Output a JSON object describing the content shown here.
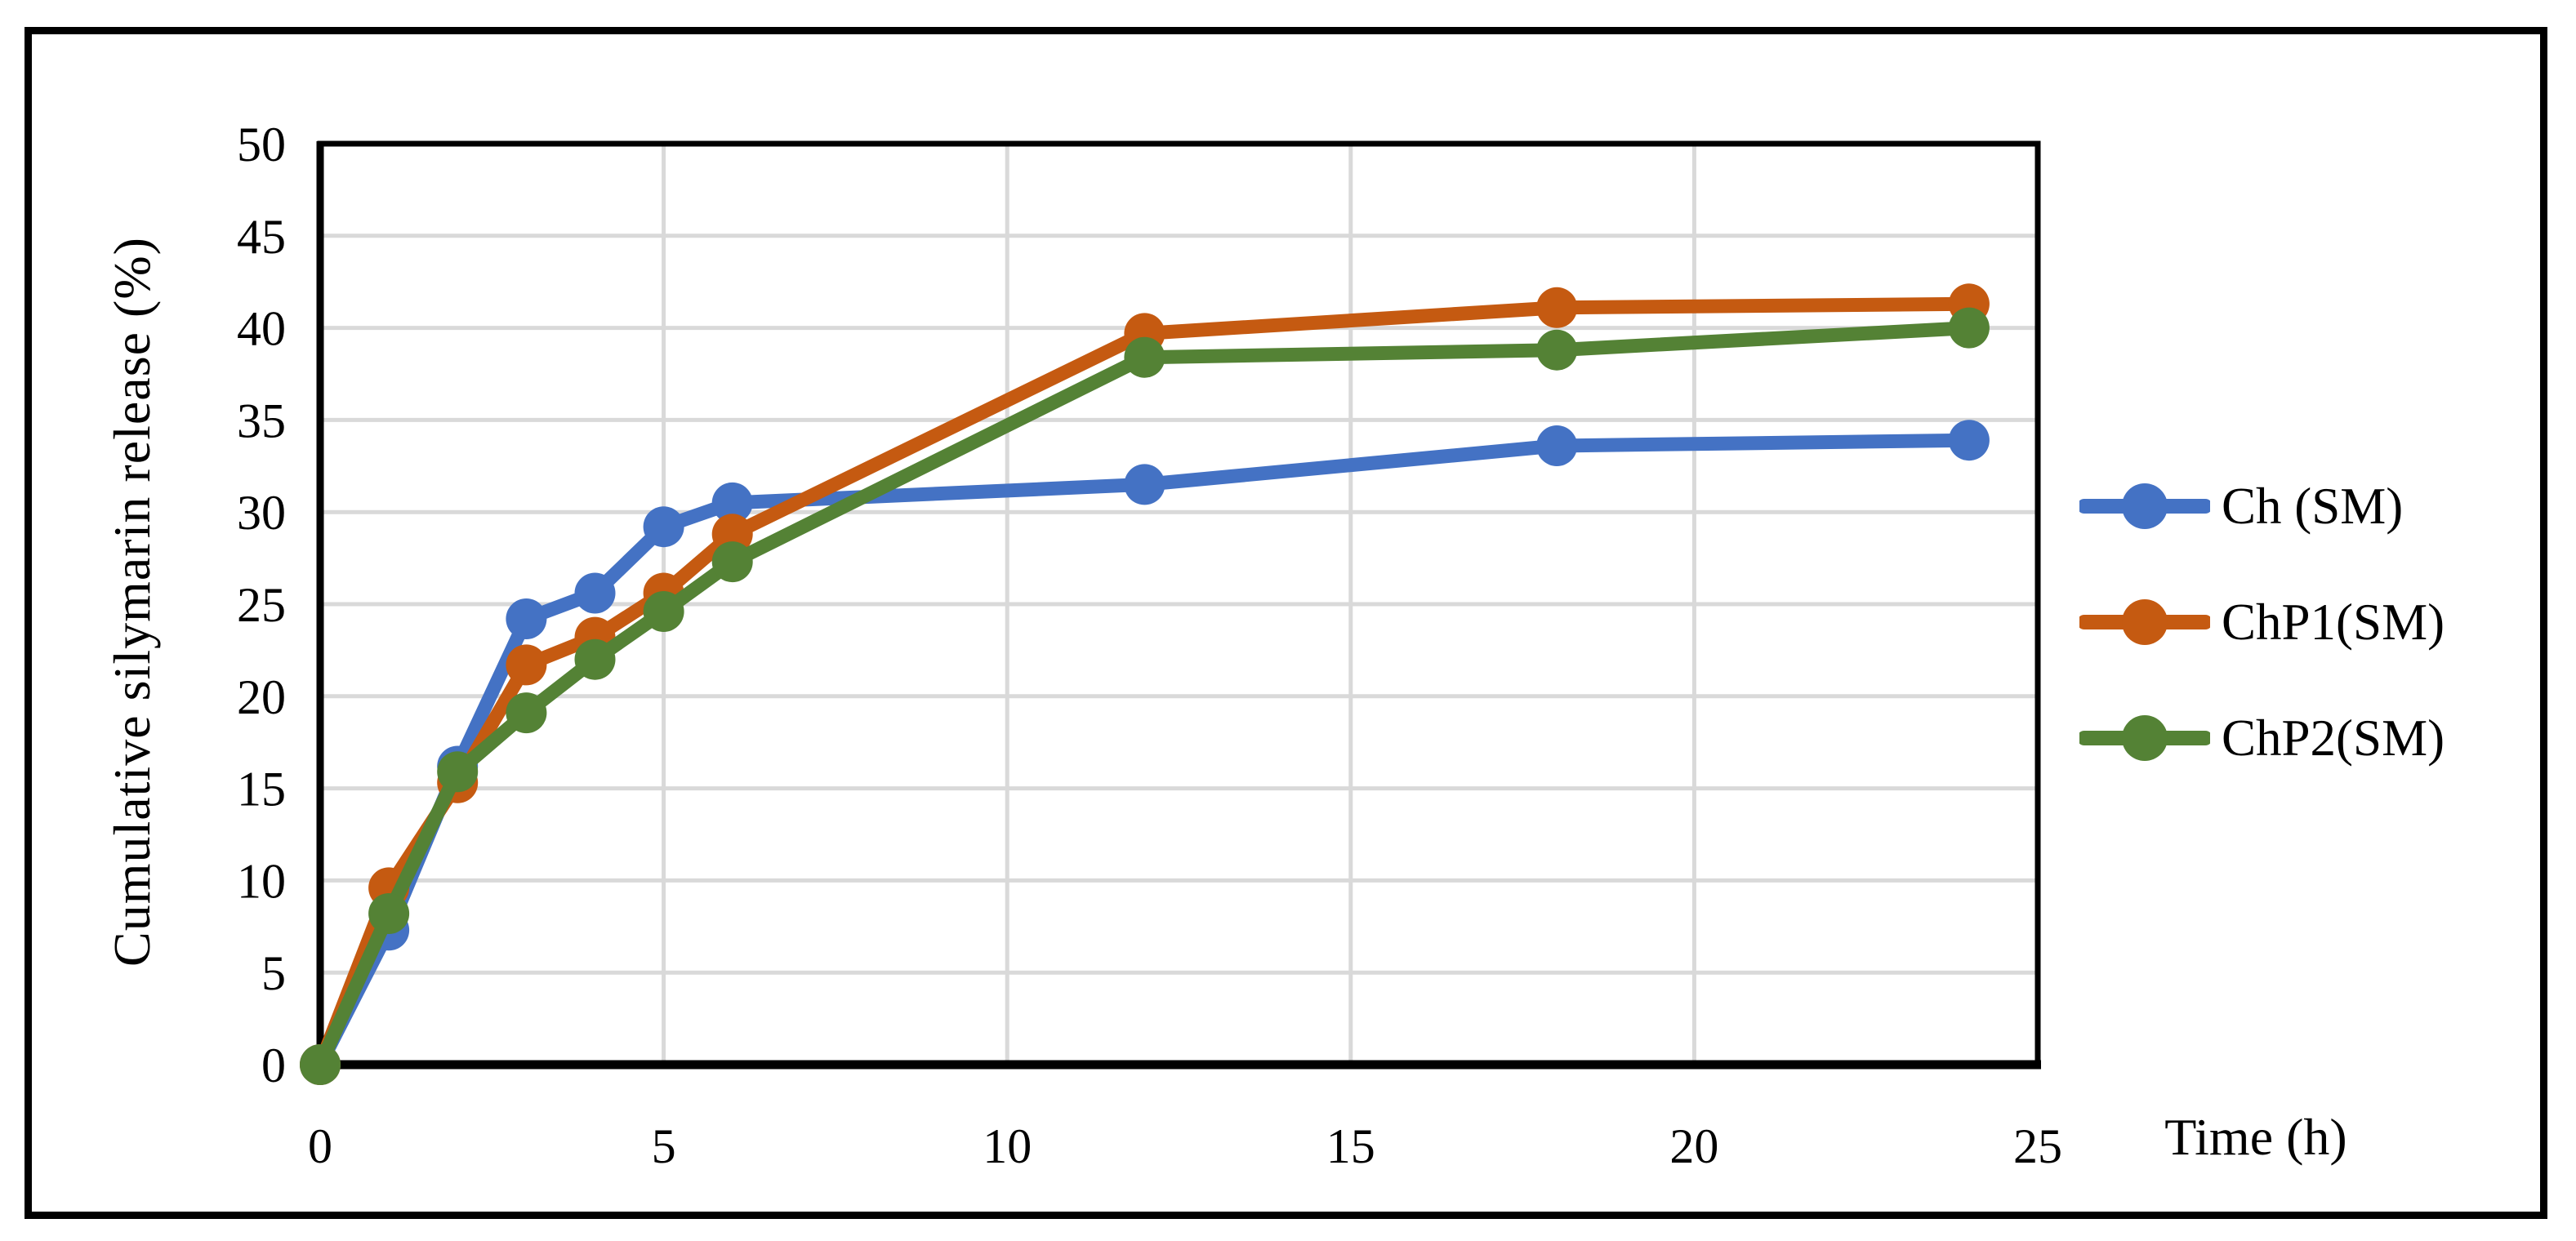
{
  "figure": {
    "type_note": "scientific line chart figure with outer black frame"
  },
  "chart_data": {
    "type": "line",
    "title": "",
    "xlabel": "Time (h)",
    "ylabel": "Cumulative silymarin release (%)",
    "x": [
      0,
      1,
      2,
      3,
      4,
      5,
      6,
      12,
      18,
      24
    ],
    "series": [
      {
        "name": "Ch (SM)",
        "color": "#4472C4",
        "values": [
          0,
          7.3,
          16.2,
          24.2,
          25.6,
          29.2,
          30.5,
          31.5,
          33.6,
          33.9
        ]
      },
      {
        "name": "ChP1(SM)",
        "color": "#C55A11",
        "values": [
          0,
          9.6,
          15.3,
          21.7,
          23.2,
          25.6,
          28.8,
          39.7,
          41.1,
          41.3
        ]
      },
      {
        "name": "ChP2(SM)",
        "color": "#548235",
        "values": [
          0,
          8.2,
          15.9,
          19.1,
          22.0,
          24.6,
          27.3,
          38.4,
          38.8,
          40.0
        ]
      }
    ],
    "xlim": [
      0,
      25
    ],
    "ylim": [
      0,
      50
    ],
    "x_ticks": [
      0,
      5,
      10,
      15,
      20,
      25
    ],
    "y_ticks": [
      0,
      5,
      10,
      15,
      20,
      25,
      30,
      35,
      40,
      45,
      50
    ],
    "grid": true,
    "grid_color": "#D9D9D9",
    "axis_color": "#000000",
    "marker": "circle",
    "legend_position": "right",
    "legend_labels": [
      "Ch (SM)",
      "ChP1(SM)",
      "ChP2(SM)"
    ]
  }
}
